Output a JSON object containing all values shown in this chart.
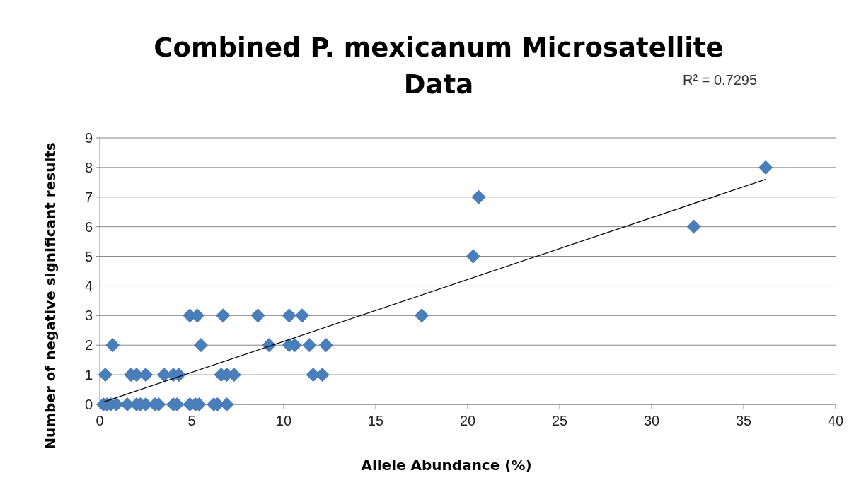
{
  "chart_data": {
    "type": "scatter",
    "title": "Combined P. mexicanum Microsatellite Data",
    "xlabel": "Allele Abundance (%)",
    "ylabel": "Number of negative significant results",
    "annotations": [
      "R² = 0.7295"
    ],
    "xlim": [
      0,
      40
    ],
    "xticks": [
      0,
      5,
      10,
      15,
      20,
      25,
      30,
      35,
      40
    ],
    "ylim": [
      0,
      9
    ],
    "yticks": [
      0,
      1,
      2,
      3,
      4,
      5,
      6,
      7,
      8,
      9
    ],
    "grid": "y",
    "marker": "diamond",
    "series": [
      {
        "color": "#4a7ebb",
        "x": [
          0.2,
          0.4,
          0.6,
          0.9,
          1.5,
          2.0,
          2.2,
          2.5,
          3.0,
          3.2,
          4.0,
          4.2,
          4.9,
          5.2,
          5.4,
          6.2,
          6.4,
          6.9,
          0.3,
          1.7,
          2.0,
          2.5,
          3.5,
          4.0,
          4.3,
          6.6,
          6.9,
          7.3,
          11.6,
          12.1,
          0.7,
          5.5,
          9.2,
          10.3,
          10.6,
          11.4,
          12.3,
          4.9,
          5.3,
          6.7,
          8.6,
          10.3,
          11.0,
          17.5,
          20.3,
          20.6,
          32.3,
          36.2
        ],
        "values": [
          0,
          0,
          0,
          0,
          0,
          0,
          0,
          0,
          0,
          0,
          0,
          0,
          0,
          0,
          0,
          0,
          0,
          0,
          1,
          1,
          1,
          1,
          1,
          1,
          1,
          1,
          1,
          1,
          1,
          1,
          2,
          2,
          2,
          2,
          2,
          2,
          2,
          3,
          3,
          3,
          3,
          3,
          3,
          3,
          5,
          7,
          6,
          8
        ]
      },
      {
        "type": "line",
        "marker": "none",
        "color": "#000000",
        "x": [
          0.2,
          36.2
        ],
        "values": [
          0.08,
          7.6
        ]
      }
    ]
  }
}
